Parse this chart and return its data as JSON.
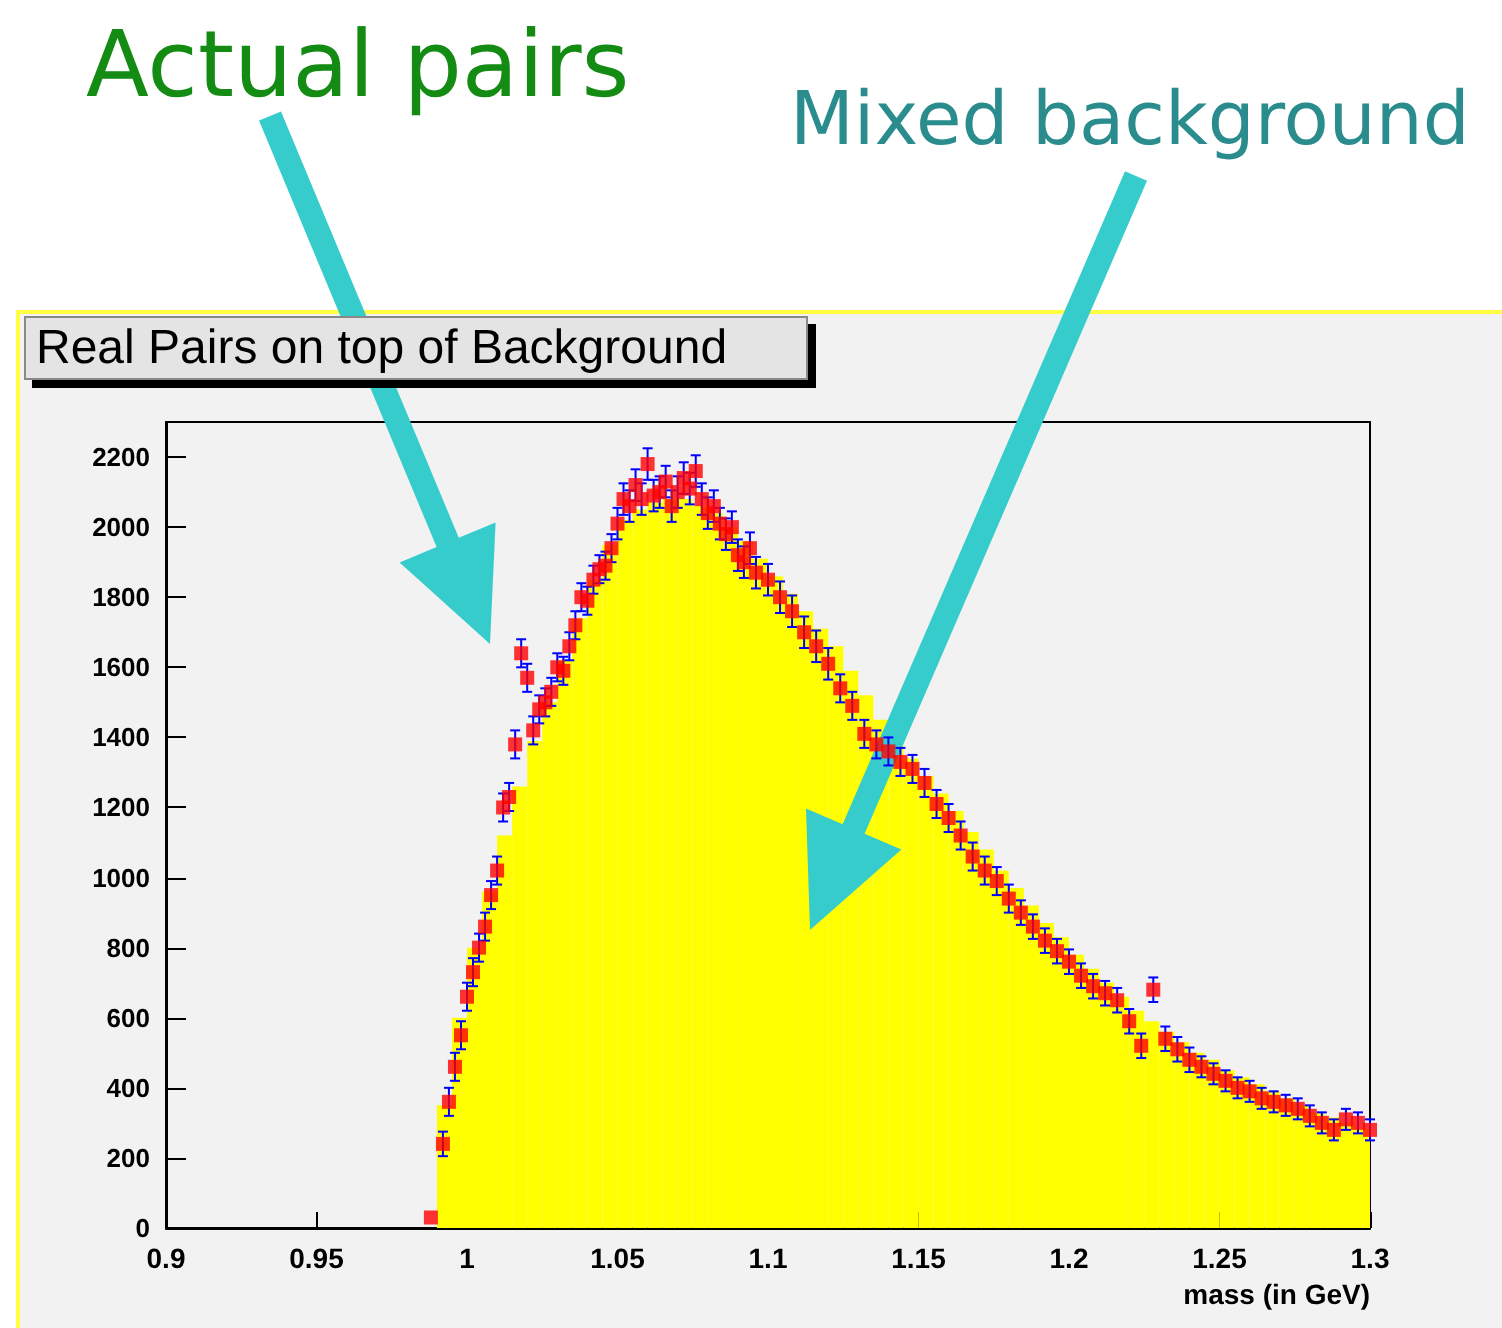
{
  "chart_data": {
    "type": "histogram",
    "title": "Real Pairs on top of Background",
    "xlabel": "mass (in GeV)",
    "xlim": [
      0.9,
      1.3
    ],
    "xticks": [
      0.9,
      0.95,
      1,
      1.05,
      1.1,
      1.15,
      1.2,
      1.25,
      1.3
    ],
    "ylim": [
      0,
      2300
    ],
    "yticks": [
      0,
      200,
      400,
      600,
      800,
      1000,
      1200,
      1400,
      1600,
      1800,
      2000,
      2200
    ],
    "annotations": [
      "Actual pairs",
      "Mixed background"
    ],
    "series": [
      {
        "color": "#ffff00",
        "bins": [
          0.99,
          0.995,
          1.0,
          1.005,
          1.01,
          1.015,
          1.02,
          1.025,
          1.03,
          1.035,
          1.04,
          1.045,
          1.05,
          1.055,
          1.06,
          1.065,
          1.07,
          1.075,
          1.08,
          1.085,
          1.09,
          1.095,
          1.1,
          1.105,
          1.11,
          1.115,
          1.12,
          1.125,
          1.13,
          1.135,
          1.14,
          1.145,
          1.15,
          1.155,
          1.16,
          1.165,
          1.17,
          1.175,
          1.18,
          1.185,
          1.19,
          1.195,
          1.2,
          1.205,
          1.21,
          1.215,
          1.22,
          1.225,
          1.23,
          1.235,
          1.24,
          1.245,
          1.25,
          1.255,
          1.26,
          1.265,
          1.27,
          1.275,
          1.28,
          1.285,
          1.29,
          1.295,
          1.3
        ],
        "values": [
          350,
          600,
          800,
          960,
          1120,
          1260,
          1390,
          1500,
          1620,
          1740,
          1850,
          1950,
          2020,
          2050,
          2070,
          2080,
          2080,
          2060,
          2040,
          2000,
          1960,
          1910,
          1860,
          1810,
          1760,
          1710,
          1660,
          1590,
          1520,
          1450,
          1390,
          1340,
          1290,
          1240,
          1190,
          1130,
          1080,
          1020,
          970,
          920,
          870,
          830,
          780,
          740,
          700,
          660,
          620,
          590,
          560,
          530,
          500,
          480,
          450,
          430,
          410,
          390,
          370,
          350,
          330,
          315,
          300,
          285
        ]
      },
      {
        "type": "scatter",
        "color": "#ff0000",
        "marker": "square",
        "x": [
          0.988,
          0.992,
          0.994,
          0.996,
          0.998,
          1.0,
          1.002,
          1.004,
          1.006,
          1.008,
          1.01,
          1.012,
          1.014,
          1.016,
          1.018,
          1.02,
          1.022,
          1.024,
          1.026,
          1.028,
          1.03,
          1.032,
          1.034,
          1.036,
          1.038,
          1.04,
          1.042,
          1.044,
          1.046,
          1.048,
          1.05,
          1.052,
          1.054,
          1.056,
          1.058,
          1.06,
          1.062,
          1.064,
          1.066,
          1.068,
          1.07,
          1.072,
          1.074,
          1.076,
          1.078,
          1.08,
          1.082,
          1.084,
          1.086,
          1.088,
          1.09,
          1.092,
          1.094,
          1.096,
          1.1,
          1.104,
          1.108,
          1.112,
          1.116,
          1.12,
          1.124,
          1.128,
          1.132,
          1.136,
          1.14,
          1.144,
          1.148,
          1.152,
          1.156,
          1.16,
          1.164,
          1.168,
          1.172,
          1.176,
          1.18,
          1.184,
          1.188,
          1.192,
          1.196,
          1.2,
          1.204,
          1.208,
          1.212,
          1.216,
          1.22,
          1.224,
          1.228,
          1.232,
          1.236,
          1.24,
          1.244,
          1.248,
          1.252,
          1.256,
          1.26,
          1.264,
          1.268,
          1.272,
          1.276,
          1.28,
          1.284,
          1.288,
          1.292,
          1.296,
          1.3
        ],
        "values": [
          30,
          240,
          360,
          460,
          550,
          660,
          730,
          800,
          860,
          950,
          1020,
          1200,
          1230,
          1380,
          1640,
          1570,
          1420,
          1480,
          1500,
          1530,
          1600,
          1590,
          1660,
          1720,
          1800,
          1790,
          1850,
          1880,
          1890,
          1940,
          2010,
          2080,
          2060,
          2120,
          2080,
          2180,
          2090,
          2100,
          2130,
          2060,
          2100,
          2140,
          2110,
          2160,
          2080,
          2040,
          2060,
          2010,
          1980,
          2000,
          1920,
          1900,
          1940,
          1870,
          1850,
          1800,
          1760,
          1700,
          1660,
          1610,
          1540,
          1490,
          1410,
          1380,
          1360,
          1330,
          1310,
          1270,
          1210,
          1170,
          1120,
          1060,
          1020,
          990,
          940,
          900,
          860,
          820,
          790,
          760,
          720,
          690,
          670,
          650,
          590,
          520,
          680,
          540,
          510,
          480,
          460,
          440,
          420,
          400,
          390,
          370,
          360,
          350,
          340,
          320,
          300,
          280,
          310,
          300,
          280
        ],
        "errors": [
          null,
          35,
          40,
          40,
          40,
          40,
          40,
          40,
          40,
          40,
          40,
          40,
          40,
          40,
          40,
          40,
          40,
          40,
          40,
          40,
          40,
          40,
          40,
          40,
          40,
          40,
          40,
          40,
          40,
          40,
          45,
          45,
          45,
          45,
          45,
          45,
          45,
          45,
          45,
          45,
          45,
          45,
          45,
          45,
          45,
          45,
          45,
          45,
          45,
          45,
          45,
          45,
          45,
          45,
          45,
          45,
          45,
          45,
          45,
          45,
          40,
          40,
          40,
          40,
          40,
          40,
          40,
          40,
          40,
          40,
          40,
          40,
          40,
          40,
          40,
          35,
          35,
          35,
          35,
          35,
          35,
          35,
          35,
          35,
          35,
          35,
          35,
          35,
          35,
          35,
          30,
          30,
          30,
          30,
          30,
          30,
          30,
          30,
          30,
          30,
          30,
          30,
          30,
          30,
          30
        ]
      }
    ]
  }
}
